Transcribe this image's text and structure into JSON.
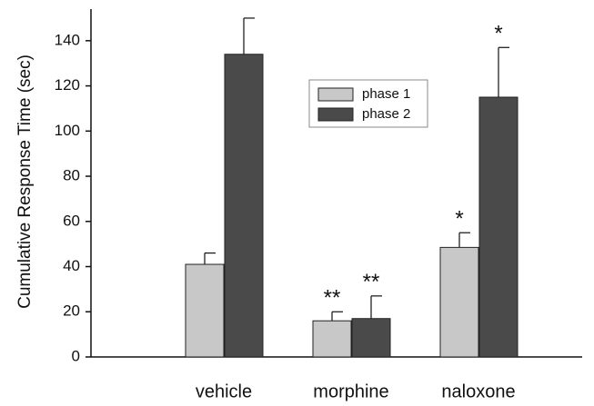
{
  "chart_data": {
    "type": "bar",
    "y_label": "Cumulative Response Time (sec)",
    "categories": [
      "vehicle",
      "morphine",
      "naloxone"
    ],
    "series": [
      {
        "name": "phase 1",
        "color": "#c8c8c8",
        "values": [
          41,
          16,
          48.5
        ],
        "errors": [
          5,
          4,
          6.5
        ],
        "significance": [
          null,
          "**",
          "*"
        ]
      },
      {
        "name": "phase 2",
        "color": "#4a4a4a",
        "values": [
          134,
          17,
          115
        ],
        "errors": [
          16,
          10,
          22
        ],
        "significance": [
          null,
          "**",
          "*"
        ]
      }
    ],
    "ylim": [
      0,
      154
    ],
    "yticks": [
      0,
      20,
      40,
      60,
      80,
      100,
      120,
      140
    ]
  }
}
